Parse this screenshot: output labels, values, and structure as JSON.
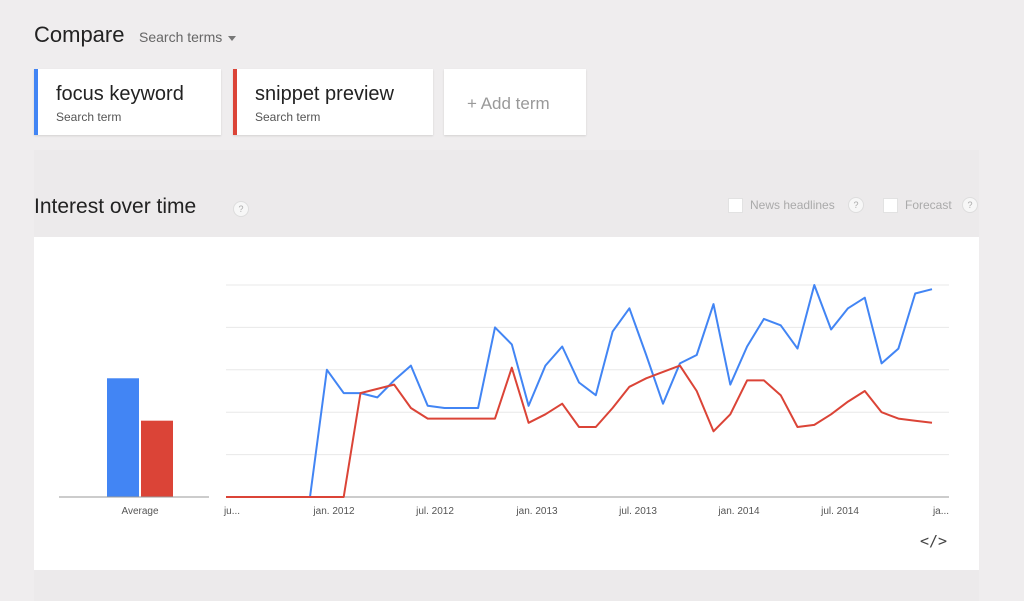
{
  "header": {
    "title": "Compare",
    "dropdown_label": "Search terms"
  },
  "terms": [
    {
      "name": "focus keyword",
      "sub": "Search term",
      "color": "#4285f4"
    },
    {
      "name": "snippet preview",
      "sub": "Search term",
      "color": "#db4437"
    }
  ],
  "add_term_label": "+ Add term",
  "section": {
    "title": "Interest over time",
    "help": "?",
    "news_label": "News headlines",
    "forecast_label": "Forecast"
  },
  "chart_data": {
    "type": "line",
    "average_label": "Average",
    "average": [
      56,
      36
    ],
    "x_labels": [
      "ju...",
      "jan. 2012",
      "jul. 2012",
      "jan. 2013",
      "jul. 2013",
      "jan. 2014",
      "jul. 2014",
      "ja..."
    ],
    "ylim": [
      0,
      100
    ],
    "gridlines": [
      20,
      40,
      60,
      80,
      100
    ],
    "series": [
      {
        "color": "#4285f4",
        "values": [
          0,
          0,
          0,
          0,
          0,
          0,
          60,
          49,
          49,
          47,
          55,
          62,
          43,
          42,
          42,
          42,
          80,
          72,
          43,
          62,
          71,
          54,
          48,
          78,
          89,
          67,
          44,
          63,
          67,
          91,
          53,
          71,
          84,
          81,
          70,
          100,
          79,
          89,
          94,
          63,
          70,
          96,
          98
        ]
      },
      {
        "color": "#db4437",
        "values": [
          0,
          0,
          0,
          0,
          0,
          0,
          0,
          0,
          49,
          51,
          53,
          42,
          37,
          37,
          37,
          37,
          37,
          61,
          35,
          39,
          44,
          33,
          33,
          42,
          52,
          56,
          59,
          62,
          50,
          31,
          39,
          55,
          55,
          48,
          33,
          34,
          39,
          45,
          50,
          40,
          37,
          36,
          35
        ]
      }
    ]
  },
  "embed_icon": "</>"
}
